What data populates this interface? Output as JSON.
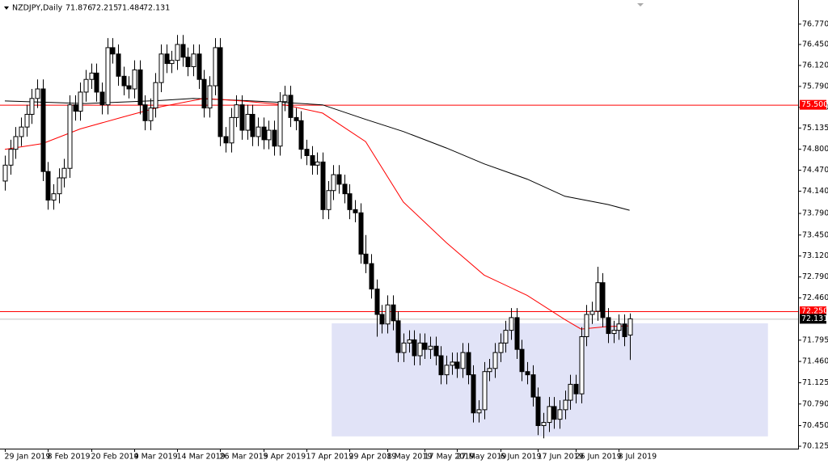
{
  "chart_data": {
    "type": "candlestick",
    "title": "NZDJPY,Daily",
    "categories": [
      "29 Jan 2019",
      null,
      null,
      null,
      null,
      null,
      null,
      null,
      "8 Feb 2019",
      null,
      null,
      null,
      null,
      null,
      null,
      null,
      "20 Feb 2019",
      null,
      null,
      null,
      null,
      null,
      null,
      null,
      "4 Mar 2019",
      null,
      null,
      null,
      null,
      null,
      null,
      null,
      "14 Mar 2019",
      null,
      null,
      null,
      null,
      null,
      null,
      null,
      "26 Mar 2019",
      null,
      null,
      null,
      null,
      null,
      null,
      null,
      "5 Apr 2019",
      null,
      null,
      null,
      null,
      null,
      null,
      null,
      "17 Apr 2019",
      null,
      null,
      null,
      null,
      null,
      null,
      null,
      "29 Apr 2019",
      null,
      null,
      null,
      null,
      null,
      null,
      "8 May 2019",
      null,
      null,
      null,
      null,
      null,
      null,
      "17 May 2019",
      null,
      null,
      null,
      null,
      null,
      "27 May 2019",
      null,
      null,
      null,
      null,
      null,
      null,
      null,
      "6 Jun 2019",
      null,
      null,
      null,
      null,
      null,
      null,
      "17 Jun 2019",
      null,
      null,
      null,
      null,
      null,
      null,
      "26 Jun 2019",
      null,
      null,
      null,
      null,
      null,
      null,
      null,
      "8 Jul 2019",
      null,
      null
    ],
    "open": [
      74.3,
      74.55,
      74.8,
      75.0,
      75.15,
      75.35,
      75.6,
      75.75,
      74.45,
      74.0,
      74.1,
      74.35,
      74.5,
      75.5,
      75.4,
      75.7,
      75.9,
      76.0,
      75.7,
      75.5,
      76.4,
      76.3,
      75.95,
      75.8,
      75.75,
      76.05,
      75.5,
      75.25,
      75.45,
      75.85,
      76.3,
      76.15,
      76.2,
      76.45,
      76.25,
      76.1,
      76.3,
      75.9,
      75.45,
      75.8,
      76.4,
      75.0,
      74.9,
      75.3,
      75.5,
      75.1,
      75.35,
      75.0,
      75.15,
      74.95,
      75.1,
      74.85,
      75.55,
      75.65,
      75.3,
      75.25,
      74.8,
      74.7,
      74.55,
      74.6,
      73.85,
      74.15,
      74.4,
      74.25,
      74.1,
      73.85,
      73.8,
      73.15,
      73.0,
      72.6,
      72.2,
      72.05,
      72.35,
      72.1,
      71.6,
      71.75,
      71.8,
      71.55,
      71.75,
      71.65,
      71.7,
      71.55,
      71.25,
      71.4,
      71.45,
      71.35,
      71.6,
      71.25,
      70.65,
      70.7,
      71.3,
      71.35,
      71.6,
      71.75,
      71.95,
      72.15,
      71.65,
      71.3,
      71.25,
      70.9,
      70.45,
      70.5,
      70.75,
      70.55,
      70.7,
      70.85,
      71.1,
      70.95,
      71.85,
      72.2,
      72.25,
      72.7,
      72.15,
      71.9,
      71.95,
      72.05,
      71.876
    ],
    "high": [
      74.7,
      74.95,
      75.15,
      75.3,
      75.5,
      75.75,
      75.9,
      75.9,
      74.6,
      74.25,
      74.5,
      74.65,
      75.65,
      75.65,
      75.85,
      76.05,
      76.15,
      76.15,
      75.85,
      76.55,
      76.55,
      76.45,
      76.1,
      75.95,
      76.2,
      76.2,
      75.65,
      75.6,
      76.0,
      76.45,
      76.45,
      76.35,
      76.6,
      76.6,
      76.4,
      76.45,
      76.45,
      76.05,
      75.95,
      76.55,
      76.55,
      75.15,
      75.45,
      75.65,
      75.65,
      75.5,
      75.5,
      75.3,
      75.3,
      75.25,
      75.25,
      75.7,
      75.8,
      75.8,
      75.45,
      75.4,
      74.95,
      74.85,
      74.75,
      74.75,
      74.3,
      74.55,
      74.55,
      74.4,
      74.25,
      74.0,
      73.95,
      73.45,
      73.15,
      72.75,
      72.35,
      72.5,
      72.5,
      72.25,
      71.9,
      71.95,
      71.95,
      71.9,
      71.9,
      71.85,
      71.85,
      71.7,
      71.55,
      71.6,
      71.6,
      71.75,
      71.75,
      71.4,
      70.85,
      71.45,
      71.5,
      71.75,
      71.9,
      72.1,
      72.3,
      72.3,
      71.8,
      71.45,
      71.4,
      71.05,
      70.65,
      70.9,
      70.9,
      70.85,
      71.0,
      71.25,
      71.25,
      72.0,
      72.35,
      72.4,
      72.95,
      72.85,
      72.3,
      72.1,
      72.2,
      72.2,
      72.215
    ],
    "low": [
      74.15,
      74.4,
      74.65,
      74.85,
      75.0,
      75.2,
      75.45,
      74.3,
      73.85,
      73.85,
      73.95,
      74.2,
      74.35,
      75.25,
      75.25,
      75.55,
      75.75,
      75.55,
      75.35,
      75.35,
      76.15,
      75.8,
      75.65,
      75.6,
      75.6,
      75.35,
      75.1,
      75.1,
      75.3,
      75.7,
      76.0,
      76.0,
      76.05,
      76.1,
      75.95,
      75.95,
      75.75,
      75.3,
      75.3,
      75.65,
      74.85,
      74.75,
      74.75,
      75.15,
      74.95,
      74.95,
      74.85,
      74.85,
      74.8,
      74.8,
      74.7,
      74.7,
      75.4,
      75.15,
      75.1,
      74.65,
      74.55,
      74.4,
      74.4,
      73.7,
      73.7,
      74.0,
      74.1,
      73.95,
      73.7,
      73.65,
      73.0,
      72.85,
      72.45,
      71.85,
      71.9,
      71.9,
      71.95,
      71.45,
      71.45,
      71.6,
      71.4,
      71.4,
      71.5,
      71.5,
      71.4,
      71.1,
      71.1,
      71.25,
      71.2,
      71.2,
      71.1,
      70.5,
      70.5,
      70.55,
      71.15,
      71.2,
      71.45,
      71.6,
      71.8,
      71.5,
      71.15,
      71.1,
      70.75,
      70.3,
      70.25,
      70.35,
      70.4,
      70.4,
      70.55,
      70.7,
      70.8,
      70.8,
      71.7,
      72.05,
      72.1,
      72.0,
      71.75,
      71.75,
      71.8,
      71.7,
      71.484
    ],
    "close": [
      74.55,
      74.8,
      75.0,
      75.15,
      75.35,
      75.6,
      75.75,
      74.45,
      74.0,
      74.1,
      74.35,
      74.5,
      75.5,
      75.4,
      75.7,
      75.9,
      76.0,
      75.7,
      75.5,
      76.4,
      76.3,
      75.95,
      75.8,
      75.75,
      76.05,
      75.5,
      75.25,
      75.45,
      75.85,
      76.3,
      76.15,
      76.2,
      76.45,
      76.25,
      76.1,
      76.3,
      75.9,
      75.45,
      75.8,
      76.4,
      75.0,
      74.9,
      75.3,
      75.5,
      75.1,
      75.35,
      75.0,
      75.15,
      74.95,
      75.1,
      74.85,
      75.55,
      75.65,
      75.3,
      75.25,
      74.8,
      74.7,
      74.55,
      74.6,
      73.85,
      74.15,
      74.4,
      74.25,
      74.1,
      73.85,
      73.8,
      73.15,
      73.0,
      72.6,
      72.2,
      72.05,
      72.35,
      72.1,
      71.6,
      71.75,
      71.8,
      71.55,
      71.75,
      71.65,
      71.7,
      71.55,
      71.25,
      71.4,
      71.45,
      71.35,
      71.6,
      71.25,
      70.65,
      70.7,
      71.3,
      71.35,
      71.6,
      71.75,
      71.95,
      72.15,
      71.65,
      71.3,
      71.25,
      70.9,
      70.45,
      70.5,
      70.75,
      70.55,
      70.7,
      70.85,
      71.1,
      70.95,
      71.85,
      72.2,
      72.25,
      72.7,
      72.15,
      71.9,
      71.95,
      72.05,
      71.85,
      72.131
    ],
    "up_color": "#ffffff",
    "down_color": "#000000",
    "ylim": [
      70.1,
      77.15
    ],
    "yticks": [
      {
        "value": 76.77,
        "label": "76.770"
      },
      {
        "value": 76.45,
        "label": "76.450"
      },
      {
        "value": 76.12,
        "label": "76.120"
      },
      {
        "value": 75.79,
        "label": "75.790"
      },
      {
        "value": 75.46,
        "label": "75.460"
      },
      {
        "value": 75.135,
        "label": "75.135"
      },
      {
        "value": 74.8,
        "label": "74.800"
      },
      {
        "value": 74.47,
        "label": "74.470"
      },
      {
        "value": 74.14,
        "label": "74.140"
      },
      {
        "value": 73.79,
        "label": "73.790"
      },
      {
        "value": 73.45,
        "label": "73.450"
      },
      {
        "value": 73.12,
        "label": "73.120"
      },
      {
        "value": 72.79,
        "label": "72.790"
      },
      {
        "value": 72.46,
        "label": "72.460"
      },
      {
        "value": 71.795,
        "label": "71.795"
      },
      {
        "value": 71.46,
        "label": "71.460"
      },
      {
        "value": 71.125,
        "label": "71.125"
      },
      {
        "value": 70.79,
        "label": "70.790"
      },
      {
        "value": 70.45,
        "label": "70.450"
      },
      {
        "value": 70.125,
        "label": "70.125"
      }
    ],
    "lines": [
      {
        "color": "#000000",
        "x": [
          0,
          15,
          29,
          35,
          44,
          53,
          59,
          67,
          74,
          82,
          89,
          97,
          104,
          112,
          116
        ],
        "values": [
          75.56,
          75.52,
          75.57,
          75.6,
          75.57,
          75.53,
          75.5,
          75.27,
          75.08,
          74.82,
          74.57,
          74.33,
          74.06,
          73.93,
          73.84
        ]
      },
      {
        "color": "#ff0000",
        "x": [
          0,
          7,
          14,
          22,
          29,
          37,
          44,
          52,
          59,
          67,
          74,
          82,
          89,
          97,
          104,
          107,
          112,
          116
        ],
        "values": [
          74.8,
          74.89,
          75.12,
          75.31,
          75.47,
          75.6,
          75.56,
          75.5,
          75.37,
          74.92,
          73.97,
          73.33,
          72.82,
          72.5,
          72.12,
          71.97,
          72.01,
          72.02
        ]
      }
    ],
    "levels": [
      {
        "value": 75.5,
        "label": "75.500",
        "color": "#ff0000"
      },
      {
        "value": 72.25,
        "label": "72.250",
        "color": "#ff0000"
      }
    ],
    "zone": {
      "x": [
        60.7,
        141.7
      ],
      "y": [
        70.28,
        72.06
      ],
      "color": "#e1e3f7"
    }
  }
}
